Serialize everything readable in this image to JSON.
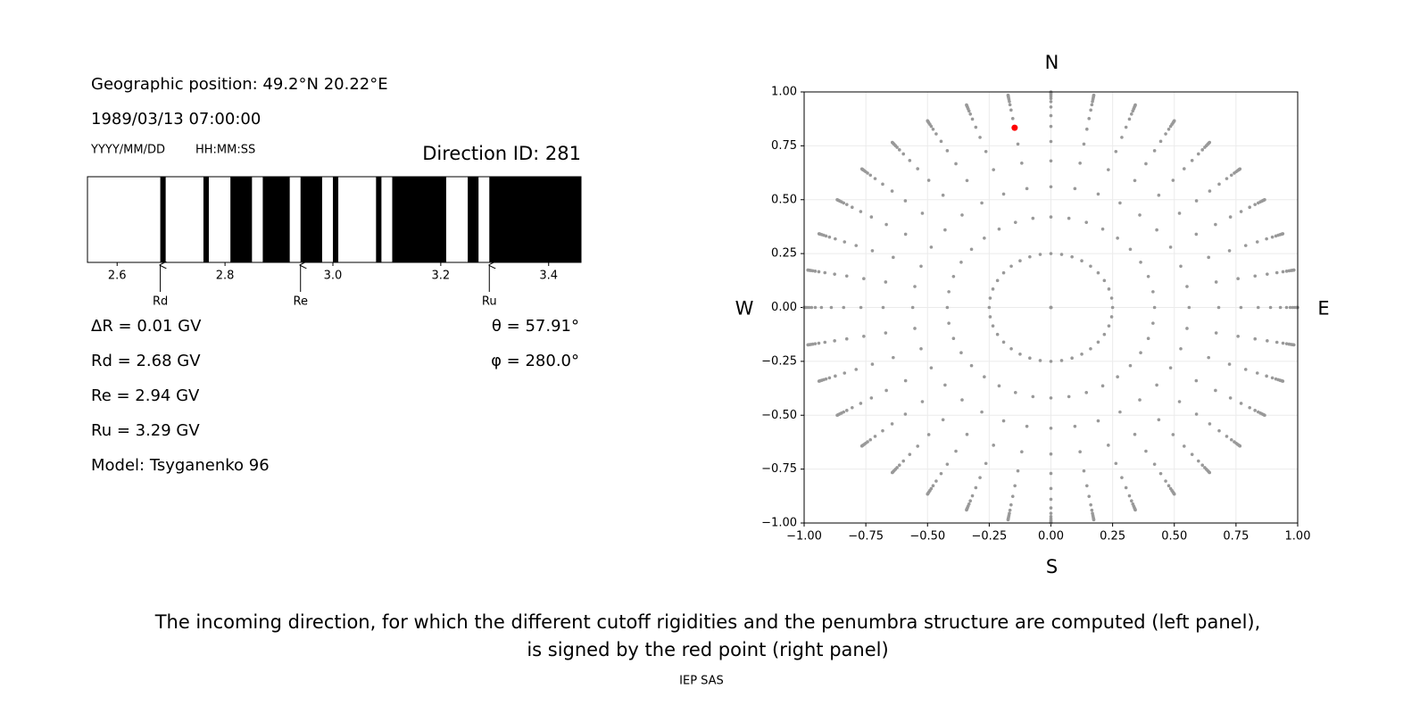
{
  "header": {
    "position": "Geographic position: 49.2°N 20.22°E",
    "datetime": "1989/03/13 07:00:00",
    "date_format": "YYYY/MM/DD",
    "time_format": "HH:MM:SS"
  },
  "info": {
    "left": [
      "ΔR = 0.01 GV",
      "Rd = 2.68 GV",
      "Re = 2.94 GV",
      "Ru = 3.29 GV",
      "Model: Tsyganenko 96"
    ],
    "right": [
      "θ = 57.91°",
      "φ = 280.0°"
    ]
  },
  "caption": [
    "The incoming direction, for which the different cutoff rigidities and the penumbra structure are computed (left panel),",
    "is signed by the red point (right panel)"
  ],
  "footer": "IEP SAS",
  "chart_data": [
    {
      "type": "penumbra",
      "title": "Direction ID: 281",
      "color": "#000000",
      "xlim": [
        2.545,
        3.46
      ],
      "xticks": [
        2.6,
        2.8,
        {
          "value": 3,
          "label": "3.0"
        },
        3.2,
        3.4
      ],
      "segments": [
        [
          2.68,
          2.69
        ],
        [
          2.76,
          2.77
        ],
        [
          2.81,
          2.85
        ],
        [
          2.87,
          2.92
        ],
        [
          2.94,
          2.98
        ],
        [
          3.0,
          3.01
        ],
        [
          3.08,
          3.09
        ],
        [
          3.11,
          3.21
        ],
        [
          3.25,
          3.27
        ],
        [
          3.29,
          3.46
        ]
      ],
      "markers": [
        {
          "label": "Rd",
          "value": 2.68
        },
        {
          "label": "Re",
          "value": 2.94
        },
        {
          "label": "Ru",
          "value": 3.29
        }
      ]
    },
    {
      "type": "scatter",
      "grid": true,
      "xlim": [
        -1,
        1
      ],
      "ylim": [
        -1,
        1
      ],
      "xticks": [
        {
          "value": -1,
          "label": "−1.00"
        },
        {
          "value": -0.75,
          "label": "−0.75"
        },
        {
          "value": -0.5,
          "label": "−0.50"
        },
        {
          "value": -0.25,
          "label": "−0.25"
        },
        {
          "value": 0,
          "label": "0.00"
        },
        {
          "value": 0.25,
          "label": "0.25"
        },
        {
          "value": 0.5,
          "label": "0.50"
        },
        {
          "value": 0.75,
          "label": "0.75"
        },
        {
          "value": 1,
          "label": "1.00"
        }
      ],
      "yticks": [
        {
          "value": -1,
          "label": "−1.00"
        },
        {
          "value": -0.75,
          "label": "−0.75"
        },
        {
          "value": -0.5,
          "label": "−0.50"
        },
        {
          "value": -0.25,
          "label": "−0.25"
        },
        {
          "value": 0,
          "label": "0.00"
        },
        {
          "value": 0.25,
          "label": "0.25"
        },
        {
          "value": 0.5,
          "label": "0.50"
        },
        {
          "value": 0.75,
          "label": "0.75"
        },
        {
          "value": 1,
          "label": "1.00"
        }
      ],
      "direction_labels": [
        "N",
        "E",
        "S",
        "W"
      ],
      "series": [
        {
          "color": "#999999",
          "radii": [
            0,
            0.25,
            0.42,
            0.56,
            0.68,
            0.77,
            0.84,
            0.89,
            0.93,
            0.955,
            0.97,
            0.98,
            0.988,
            0.994,
            0.998,
            1.0
          ],
          "angles": [
            0,
            10,
            20,
            30,
            40,
            50,
            60,
            70,
            80,
            90,
            100,
            110,
            120,
            130,
            140,
            150,
            160,
            170,
            180,
            190,
            200,
            210,
            220,
            230,
            240,
            250,
            260,
            270,
            280,
            290,
            300,
            310,
            320,
            330,
            340,
            350
          ]
        },
        {
          "color": "#ff0000",
          "x": [
            -0.147
          ],
          "y": [
            0.834
          ]
        }
      ]
    }
  ]
}
